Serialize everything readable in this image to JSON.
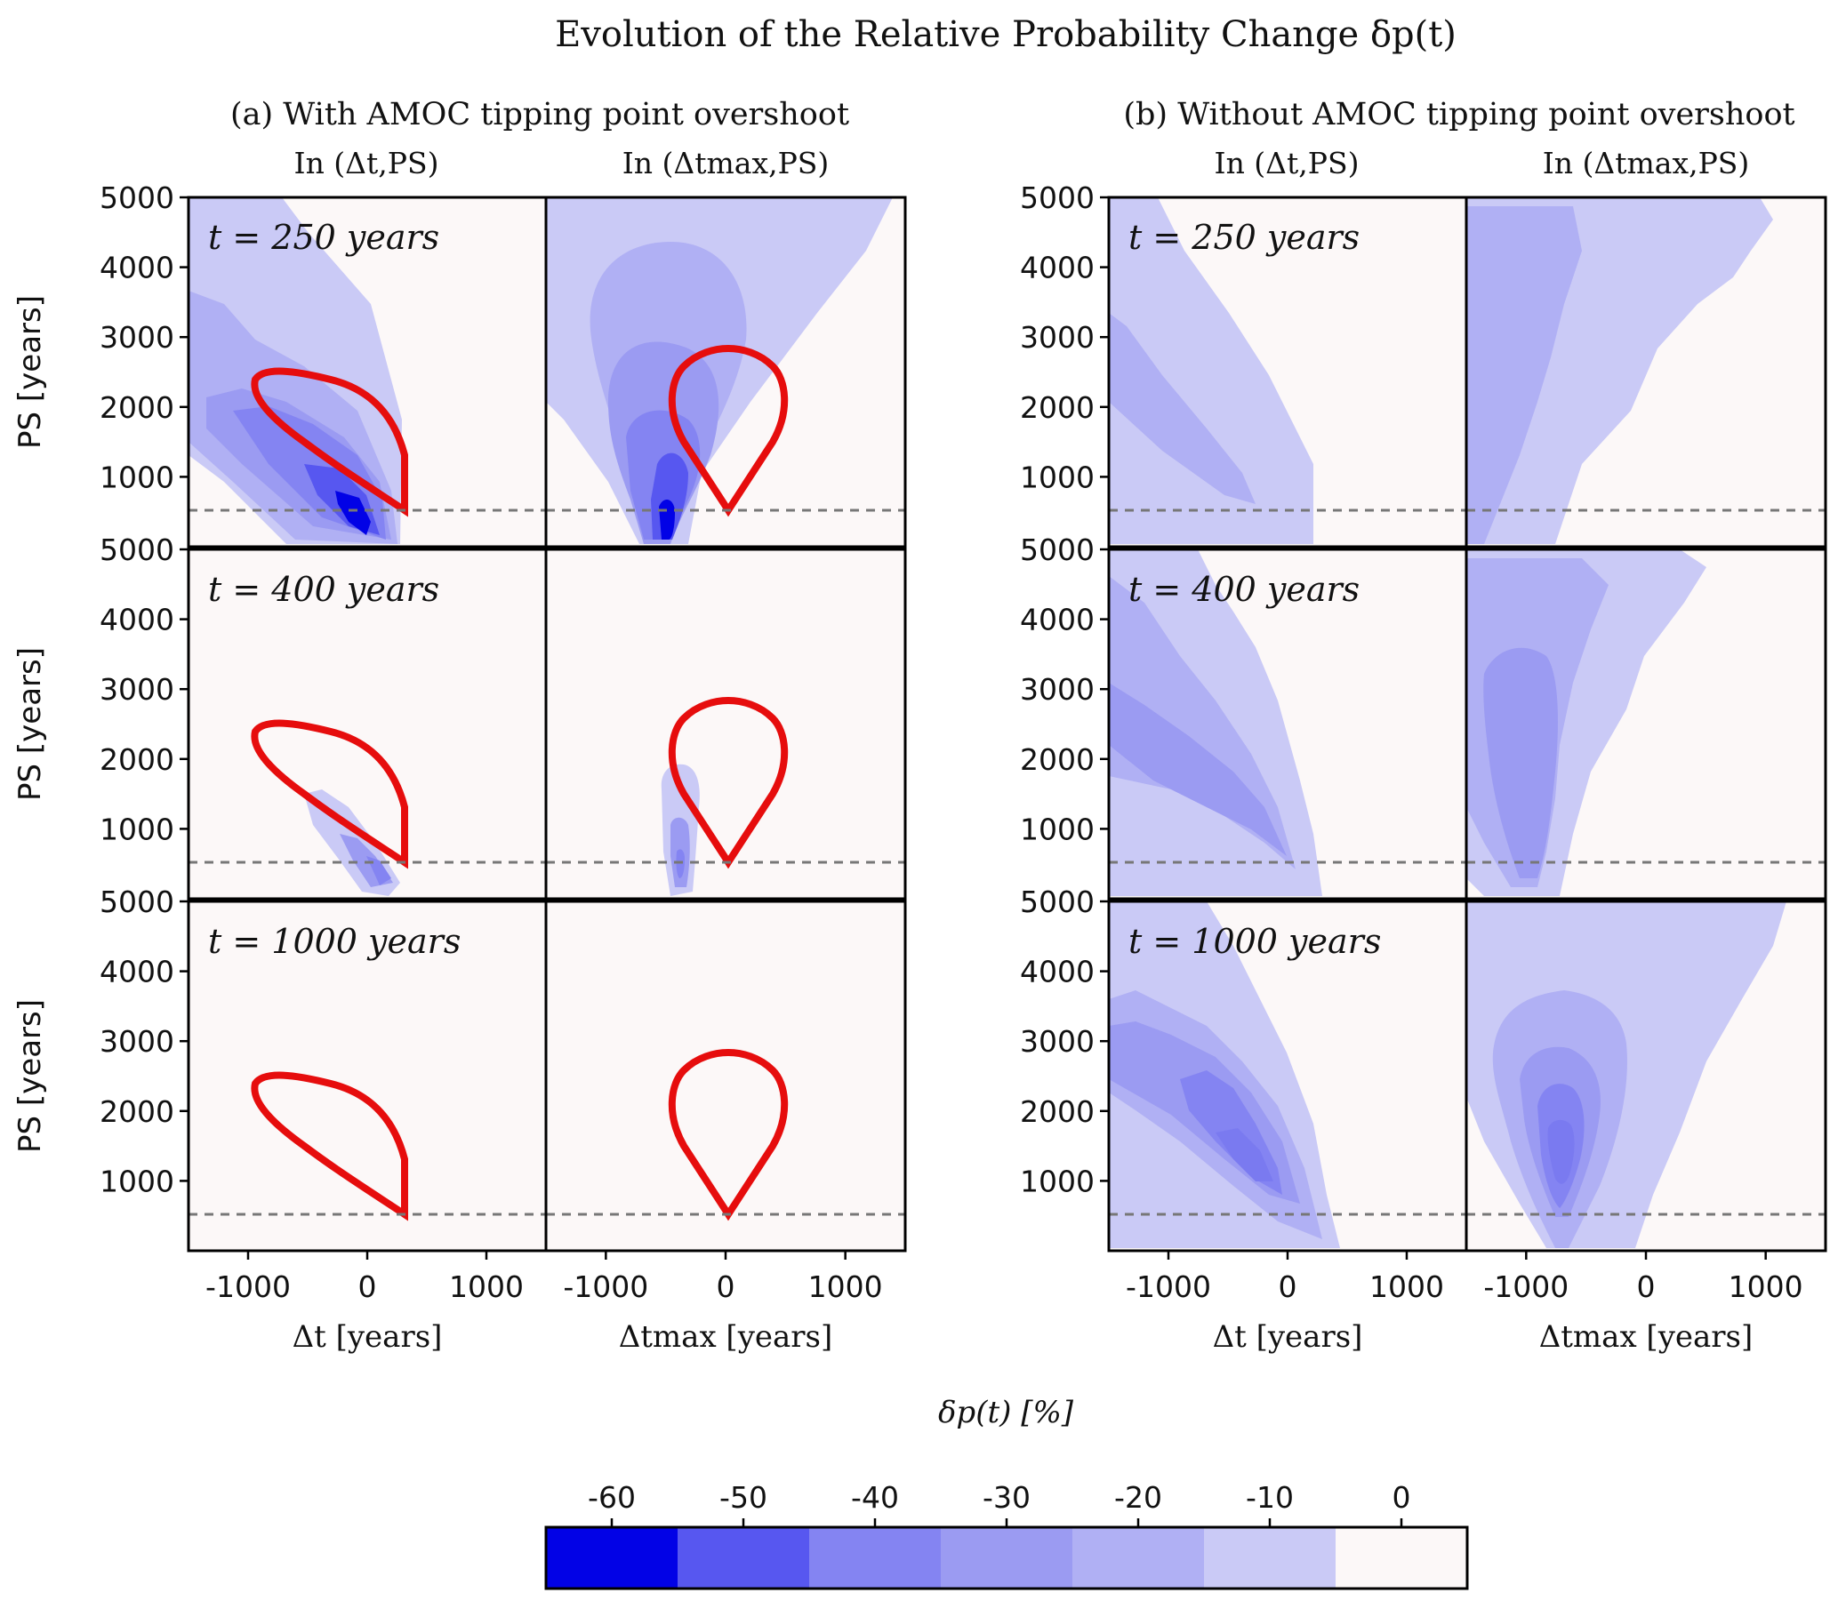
{
  "figure": {
    "title": "Evolution of the Relative Probability Change δp(t)"
  },
  "groups": [
    {
      "id": "a",
      "title": "(a) With AMOC tipping point overshoot",
      "col_titles": [
        "In (Δt,PS)",
        "In (Δtmax,PS)"
      ]
    },
    {
      "id": "b",
      "title": "(b) Without AMOC tipping point overshoot",
      "col_titles": [
        "In (Δt,PS)",
        "In (Δtmax,PS)"
      ]
    }
  ],
  "rows": [
    {
      "label": "t = 250 years"
    },
    {
      "label": "t = 400 years"
    },
    {
      "label": "t = 1000 years"
    }
  ],
  "axes": {
    "ylabel": "PS [years]",
    "yticks": [
      "5000",
      "4000",
      "3000",
      "2000",
      "1000"
    ],
    "xticks": [
      "-1000",
      "0",
      "1000"
    ],
    "xlabels": [
      "Δt [years]",
      "Δtmax [years]"
    ]
  },
  "colorbar": {
    "label": "δp(t) [%]",
    "ticks": [
      "-60",
      "-50",
      "-40",
      "-30",
      "-20",
      "-10",
      "0"
    ],
    "colors": [
      "#0202e6",
      "#5757f0",
      "#8484f2",
      "#9b9bf2",
      "#b0b0f4",
      "#cacaf6",
      "#fcf8f8"
    ]
  },
  "chart_data": {
    "type": "heatmap",
    "title": "Evolution of the Relative Probability Change δp(t)",
    "x_range": [
      -1500,
      1500
    ],
    "y_range": [
      0,
      5000
    ],
    "threshold_line_PS": 500,
    "contour_levels_percent": [
      -65,
      -55,
      -45,
      -35,
      -25,
      -15,
      -5,
      5
    ],
    "panels": [
      {
        "group": "a",
        "coord": "Δt",
        "t": 250,
        "min_dp": -65,
        "tipping_region_outline": true
      },
      {
        "group": "a",
        "coord": "Δtmax",
        "t": 250,
        "min_dp": -65,
        "tipping_region_outline": true
      },
      {
        "group": "b",
        "coord": "Δt",
        "t": 250,
        "min_dp": -20
      },
      {
        "group": "b",
        "coord": "Δtmax",
        "t": 250,
        "min_dp": -25
      },
      {
        "group": "a",
        "coord": "Δt",
        "t": 400,
        "min_dp": -40,
        "tipping_region_outline": true
      },
      {
        "group": "a",
        "coord": "Δtmax",
        "t": 400,
        "min_dp": -40,
        "tipping_region_outline": true
      },
      {
        "group": "b",
        "coord": "Δt",
        "t": 400,
        "min_dp": -30
      },
      {
        "group": "b",
        "coord": "Δtmax",
        "t": 400,
        "min_dp": -30
      },
      {
        "group": "a",
        "coord": "Δt",
        "t": 1000,
        "min_dp": 0,
        "tipping_region_outline": true
      },
      {
        "group": "a",
        "coord": "Δtmax",
        "t": 1000,
        "min_dp": 0,
        "tipping_region_outline": true
      },
      {
        "group": "b",
        "coord": "Δt",
        "t": 1000,
        "min_dp": -40
      },
      {
        "group": "b",
        "coord": "Δtmax",
        "t": 1000,
        "min_dp": -40
      }
    ]
  }
}
